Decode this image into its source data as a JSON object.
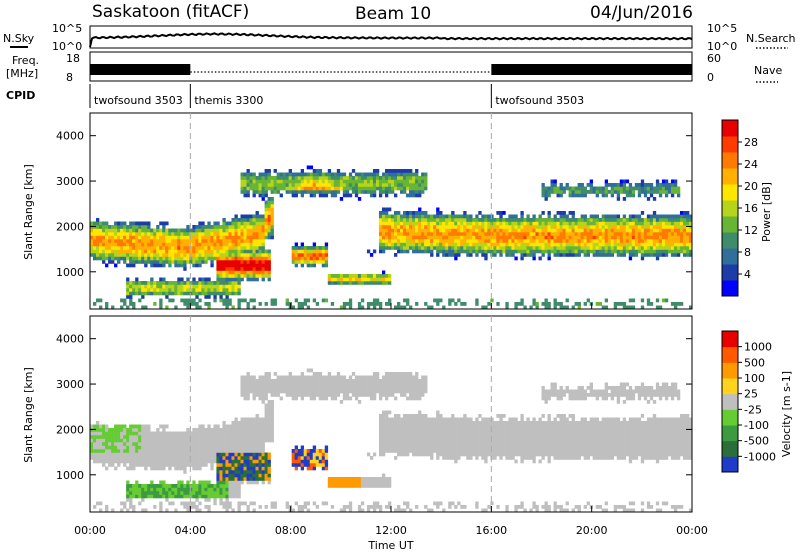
{
  "header": {
    "station": "Saskatoon (fitACF)",
    "beam": "Beam 10",
    "date": "04/Jun/2016"
  },
  "meta_panel": {
    "nsky_label": "N.Sky",
    "nsearch_label": "N.Search",
    "noise_ticks": [
      "10^5",
      "10^0"
    ],
    "freq_label_1": "Freq.",
    "freq_label_2": "[MHz]",
    "freq_ticks": [
      "18",
      "8"
    ],
    "nave_label": "Nave",
    "nave_ticks": [
      "60",
      "0"
    ],
    "cpid_label": "CPID",
    "cpid_segments": [
      {
        "name": "twofsound 3503",
        "start_h": 0,
        "end_h": 4
      },
      {
        "name": "themis 3300",
        "start_h": 4,
        "end_h": 16
      },
      {
        "name": "twofsound 3503",
        "start_h": 16,
        "end_h": 24
      }
    ]
  },
  "chart_data": [
    {
      "type": "heatmap",
      "title": "Power",
      "ylabel": "Slant Range [km]",
      "xlabel": "Time UT",
      "x_ticks": [
        "00:00",
        "04:00",
        "08:00",
        "12:00",
        "16:00",
        "20:00",
        "00:00"
      ],
      "xlim_hours": [
        0,
        24
      ],
      "ylim": [
        180,
        4500
      ],
      "y_ticks": [
        1000,
        2000,
        3000,
        4000
      ],
      "colorbar": {
        "label": "Power [dB]",
        "ticks": [
          "28",
          "24",
          "20",
          "16",
          "12",
          "8",
          "4"
        ],
        "colors": [
          "#0000ff",
          "#1e3ca8",
          "#2f6f9a",
          "#3e8c6a",
          "#68b434",
          "#b6d41a",
          "#ffe600",
          "#ffb000",
          "#ff7a00",
          "#ff3c00",
          "#e60000"
        ]
      }
    },
    {
      "type": "heatmap",
      "title": "Velocity",
      "ylabel": "Slant Range [km]",
      "xlabel": "Time UT",
      "x_ticks": [
        "00:00",
        "04:00",
        "08:00",
        "12:00",
        "16:00",
        "20:00",
        "00:00"
      ],
      "xlim_hours": [
        0,
        24
      ],
      "ylim": [
        180,
        4500
      ],
      "y_ticks": [
        1000,
        2000,
        3000,
        4000
      ],
      "colorbar": {
        "label": "Velocity [m s-1]",
        "ticks": [
          "1000",
          "500",
          "100",
          "25",
          "-25",
          "-100",
          "-500",
          "-1000"
        ],
        "colors": [
          "#1e3cc8",
          "#2a6f3a",
          "#3c9a40",
          "#66cc33",
          "#bfbfbf",
          "#ffd21e",
          "#ff9a00",
          "#ff5a00",
          "#e60000"
        ]
      }
    }
  ]
}
